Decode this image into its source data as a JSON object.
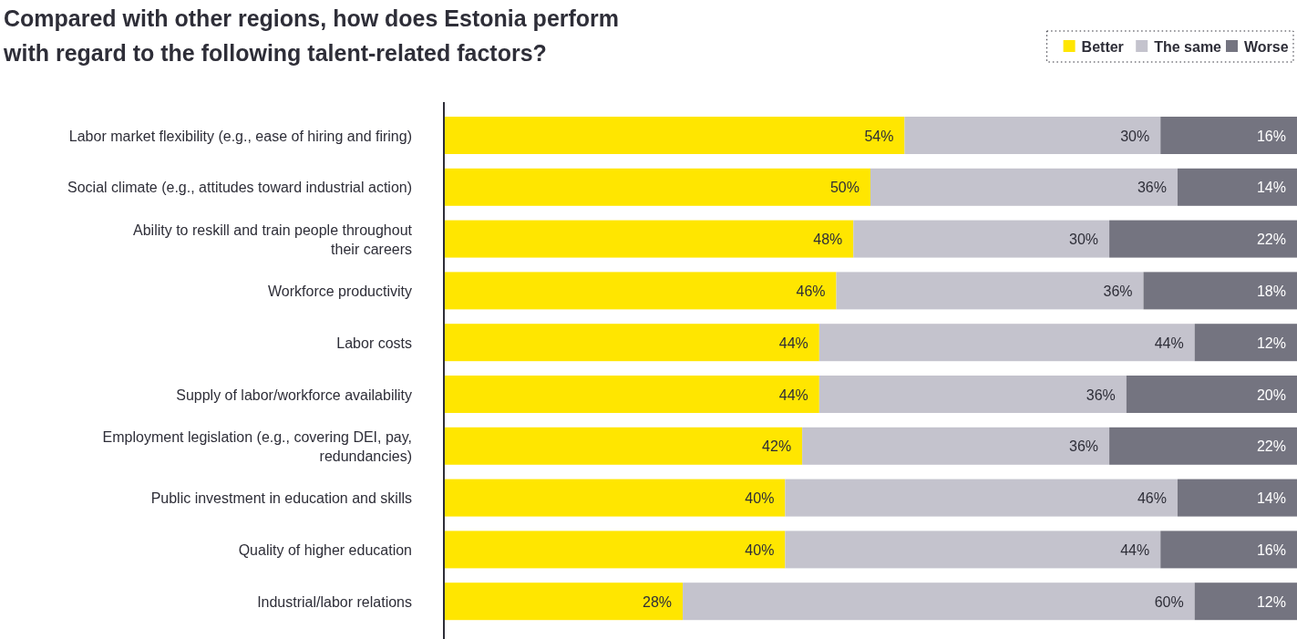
{
  "chart_data": {
    "type": "bar",
    "orientation": "horizontal",
    "stacked": true,
    "title": "Compared with other regions, how does Estonia perform\nwith regard to the following talent-related factors?",
    "categories": [
      "Labor market flexibility (e.g., ease of hiring and firing)",
      "Social climate (e.g., attitudes toward industrial action)",
      "Ability to reskill and train people throughout\ntheir careers",
      "Workforce productivity",
      "Labor costs",
      "Supply of labor/workforce availability",
      "Employment legislation (e.g., covering DEI, pay,\nredundancies)",
      "Public investment in education and skills",
      "Quality of higher education",
      "Industrial/labor relations"
    ],
    "series": [
      {
        "name": "Better",
        "color": "#ffe600",
        "values": [
          54,
          50,
          48,
          46,
          44,
          44,
          42,
          40,
          40,
          28
        ],
        "value_labels": [
          "54%",
          "50%",
          "48%",
          "46%",
          "44%",
          "44%",
          "42%",
          "40%",
          "40%",
          "28%"
        ]
      },
      {
        "name": "The same",
        "color": "#c4c3cd",
        "values": [
          30,
          36,
          30,
          36,
          44,
          36,
          36,
          46,
          44,
          60
        ],
        "value_labels": [
          "30%",
          "36%",
          "30%",
          "36%",
          "44%",
          "36%",
          "36%",
          "46%",
          "44%",
          "60%"
        ]
      },
      {
        "name": "Worse",
        "color": "#747480",
        "values": [
          16,
          14,
          22,
          18,
          12,
          20,
          22,
          14,
          16,
          12
        ],
        "value_labels": [
          "16%",
          "14%",
          "22%",
          "18%",
          "12%",
          "20%",
          "22%",
          "14%",
          "16%",
          "12%"
        ]
      }
    ],
    "xlim": [
      0,
      100
    ],
    "tick_labels": "y",
    "legend": "top right"
  }
}
